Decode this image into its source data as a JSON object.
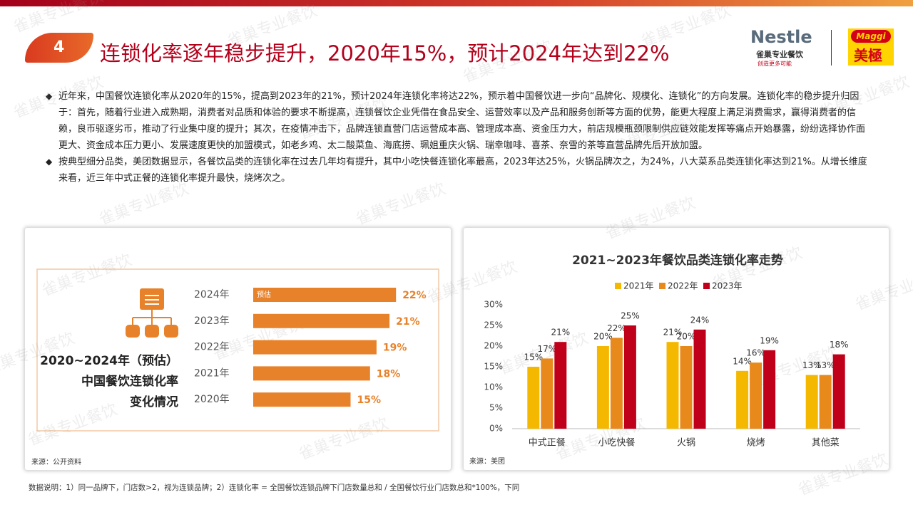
{
  "header": {
    "number": "4",
    "title": "连锁化率逐年稳步提升，2020年15%，预计2024年达到22%",
    "logos": [
      "Nestle",
      "雀巢专业餐饮",
      "创造更多可能",
      "Maggi",
      "美極"
    ]
  },
  "watermark": "雀巢专业餐饮",
  "bullets": [
    "近年来，中国餐饮连锁化率从2020年的15%，提高到2023年的21%，预计2024年连锁化率将达22%，预示着中国餐饮进一步向“品牌化、规模化、连锁化”的方向发展。连锁化率的稳步提升归因于：首先，随着行业进入成熟期，消费者对品质和体验的要求不断提高，连锁餐饮企业凭借在食品安全、运营效率以及产品和服务创新等方面的优势，能更大程度上满足消费需求，赢得消费者的信赖，良币驱逐劣币，推动了行业集中度的提升；其次，在疫情冲击下，品牌连锁直营门店运营成本高、管理成本高、资金压力大，前店规模瓶颈限制供应链效能发挥等痛点开始暴露，纷纷选择协作面更大、资金成本压力更小、发展速度更快的加盟模式，如老乡鸡、太二酸菜鱼、海底捞、珮姐重庆火锅、瑞幸咖啡、喜茶、奈雪的茶等直营品牌先后开放加盟。",
    "按典型细分品类，美团数据显示，各餐饮品类的连锁化率在过去几年均有提升，其中小吃快餐连锁化率最高，2023年达25%，火锅品牌次之，为24%，八大菜系品类连锁化率达到21%。从增长维度来看，近三年中式正餐的连锁化率提升最快，烧烤次之。"
  ],
  "footnote": "数据说明：1）同一品牌下，门店数>2，视为连锁品牌；2）连锁化率 = 全国餐饮连锁品牌下门店数量总和 / 全国餐饮行业门店数总和*100%，下同",
  "chart_data": [
    {
      "type": "bar",
      "horizontal": true,
      "title_lines": [
        "2020~2024年（预估）",
        "中国餐饮连锁化率",
        "变化情况"
      ],
      "categories": [
        "2024年",
        "2023年",
        "2022年",
        "2021年",
        "2020年"
      ],
      "values": [
        22,
        21,
        19,
        18,
        15
      ],
      "value_labels": [
        "22%",
        "21%",
        "19%",
        "18%",
        "15%"
      ],
      "annotation": "预估",
      "color": "#e8822a",
      "source": "来源：公开资料"
    },
    {
      "type": "bar",
      "title": "2021~2023年餐饮品类连锁化率走势",
      "categories": [
        "中式正餐",
        "小吃快餐",
        "火锅",
        "烧烤",
        "其他菜"
      ],
      "series": [
        {
          "name": "2021年",
          "color": "#f5b800",
          "values": [
            15,
            20,
            21,
            14,
            13
          ],
          "value_labels": [
            "15%",
            "20%",
            "21%",
            "14%",
            "13%"
          ]
        },
        {
          "name": "2022年",
          "color": "#e8891c",
          "values": [
            17,
            22,
            20,
            16,
            13
          ],
          "value_labels": [
            "17%",
            "22%",
            "20%",
            "16%",
            "13%"
          ]
        },
        {
          "name": "2023年",
          "color": "#c0001a",
          "values": [
            21,
            25,
            24,
            19,
            18
          ],
          "value_labels": [
            "21%",
            "25%",
            "24%",
            "19%",
            "18%"
          ]
        }
      ],
      "ylim": [
        0,
        30
      ],
      "yticks": [
        {
          "value": 0,
          "label": "0%"
        },
        {
          "value": 5,
          "label": "5%"
        },
        {
          "value": 10,
          "label": "10%"
        },
        {
          "value": 15,
          "label": "15%"
        },
        {
          "value": 20,
          "label": "20%"
        },
        {
          "value": 25,
          "label": "25%"
        },
        {
          "value": 30,
          "label": "30%"
        }
      ],
      "grid": false,
      "source": "来源：美团"
    }
  ]
}
